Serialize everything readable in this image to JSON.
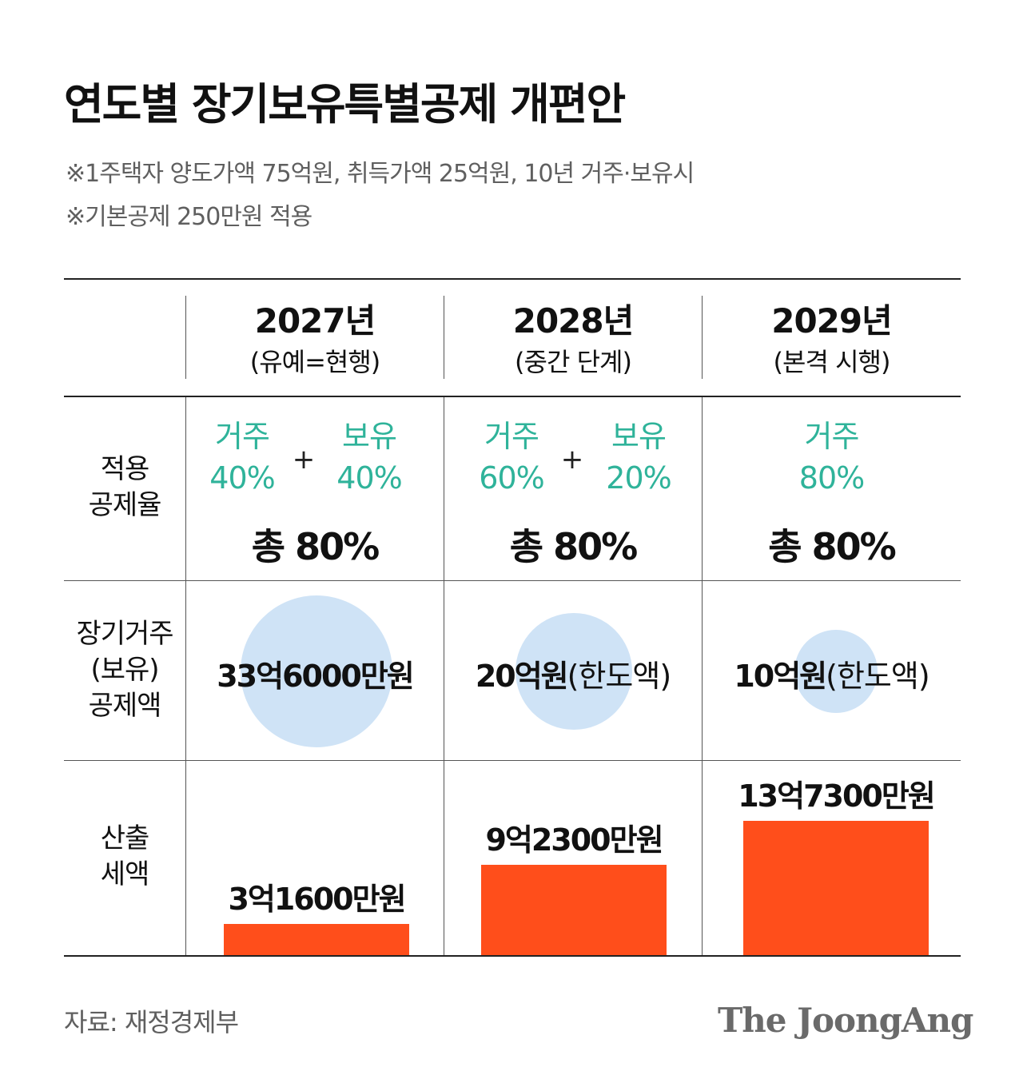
{
  "title": "연도별 장기보유특별공제 개편안",
  "notes": [
    "※1주택자 양도가액 75억원, 취득가액 25억원, 10년 거주·보유시",
    "※기본공제 250만원 적용"
  ],
  "row_labels": {
    "rate": [
      "적용",
      "공제율"
    ],
    "deduction": [
      "장기거주",
      "(보유)",
      "공제액"
    ],
    "tax": [
      "산출",
      "세액"
    ]
  },
  "columns": [
    {
      "year": "2027년",
      "phase": "(유예=현행)",
      "rate_parts": [
        {
          "label": "거주",
          "value": "40%"
        },
        {
          "label": "보유",
          "value": "40%"
        }
      ],
      "plus": "+",
      "total": "총 80%",
      "deduction": {
        "amount": "33억6000만원",
        "note": ""
      },
      "tax": {
        "label": "3억1600만원"
      }
    },
    {
      "year": "2028년",
      "phase": "(중간 단계)",
      "rate_parts": [
        {
          "label": "거주",
          "value": "60%"
        },
        {
          "label": "보유",
          "value": "20%"
        }
      ],
      "plus": "+",
      "total": "총 80%",
      "deduction": {
        "amount": "20억원",
        "note": "(한도액)"
      },
      "tax": {
        "label": "9억2300만원"
      }
    },
    {
      "year": "2029년",
      "phase": "(본격 시행)",
      "rate_parts": [
        {
          "label": "거주",
          "value": "80%"
        }
      ],
      "plus": "",
      "total": "총 80%",
      "deduction": {
        "amount": "10억원",
        "note": "(한도액)"
      },
      "tax": {
        "label": "13억7300만원"
      }
    }
  ],
  "chart_data": [
    {
      "type": "bar",
      "categories": [
        "2027년",
        "2028년",
        "2029년"
      ],
      "values": [
        31600,
        92300,
        137300
      ],
      "value_labels": [
        "3억1600만원",
        "9억2300만원",
        "13억7300만원"
      ],
      "title": "",
      "xlabel": "",
      "ylabel": "",
      "color": "#ff4e1b"
    },
    {
      "type": "bubble",
      "categories": [
        "2027년",
        "2028년",
        "2029년"
      ],
      "values": [
        336000,
        200000,
        100000
      ],
      "value_labels": [
        "33억6000만원",
        "20억원(한도액)",
        "10억원(한도액)"
      ],
      "color": "#cfe3f6"
    }
  ],
  "colors": {
    "accent_teal": "#2fb39a",
    "bar": "#ff4e1b",
    "bubble": "#cfe3f6"
  },
  "source": "자료: 재정경제부",
  "logo": "The JoongAng"
}
